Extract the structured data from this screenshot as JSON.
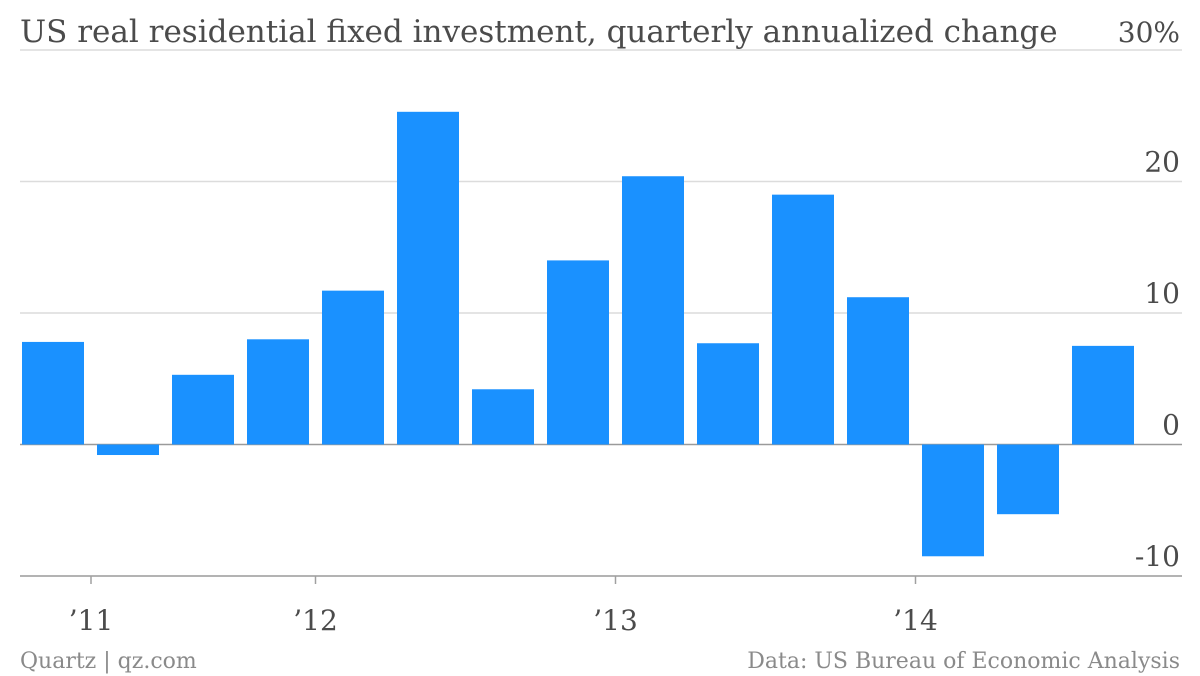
{
  "chart_data": {
    "type": "bar",
    "title": "US real residential fixed investment, quarterly annualized change",
    "ylabel_unit": "%",
    "ylim": [
      -10,
      30
    ],
    "yticks": [
      -10,
      0,
      10,
      20,
      30
    ],
    "ytick_labels": [
      "-10",
      "0",
      "10",
      "20",
      "30%"
    ],
    "x_tick_labels": [
      "’11",
      "’12",
      "’13",
      "’14"
    ],
    "categories": [
      "2011Q1",
      "2011Q2",
      "2011Q3",
      "2011Q4",
      "2012Q1",
      "2012Q2",
      "2012Q3",
      "2012Q4",
      "2013Q1",
      "2013Q2",
      "2013Q3",
      "2013Q4",
      "2014Q1",
      "2014Q2",
      "2014Q3"
    ],
    "values": [
      7.8,
      -0.8,
      5.3,
      8.0,
      11.7,
      25.3,
      4.2,
      14.0,
      20.4,
      7.7,
      19.0,
      11.2,
      -8.5,
      -5.3,
      7.5
    ],
    "grid": true,
    "bar_color": "#1a91ff",
    "source": "Data: US Bureau of Economic Analysis",
    "credit": "Quartz | qz.com"
  }
}
